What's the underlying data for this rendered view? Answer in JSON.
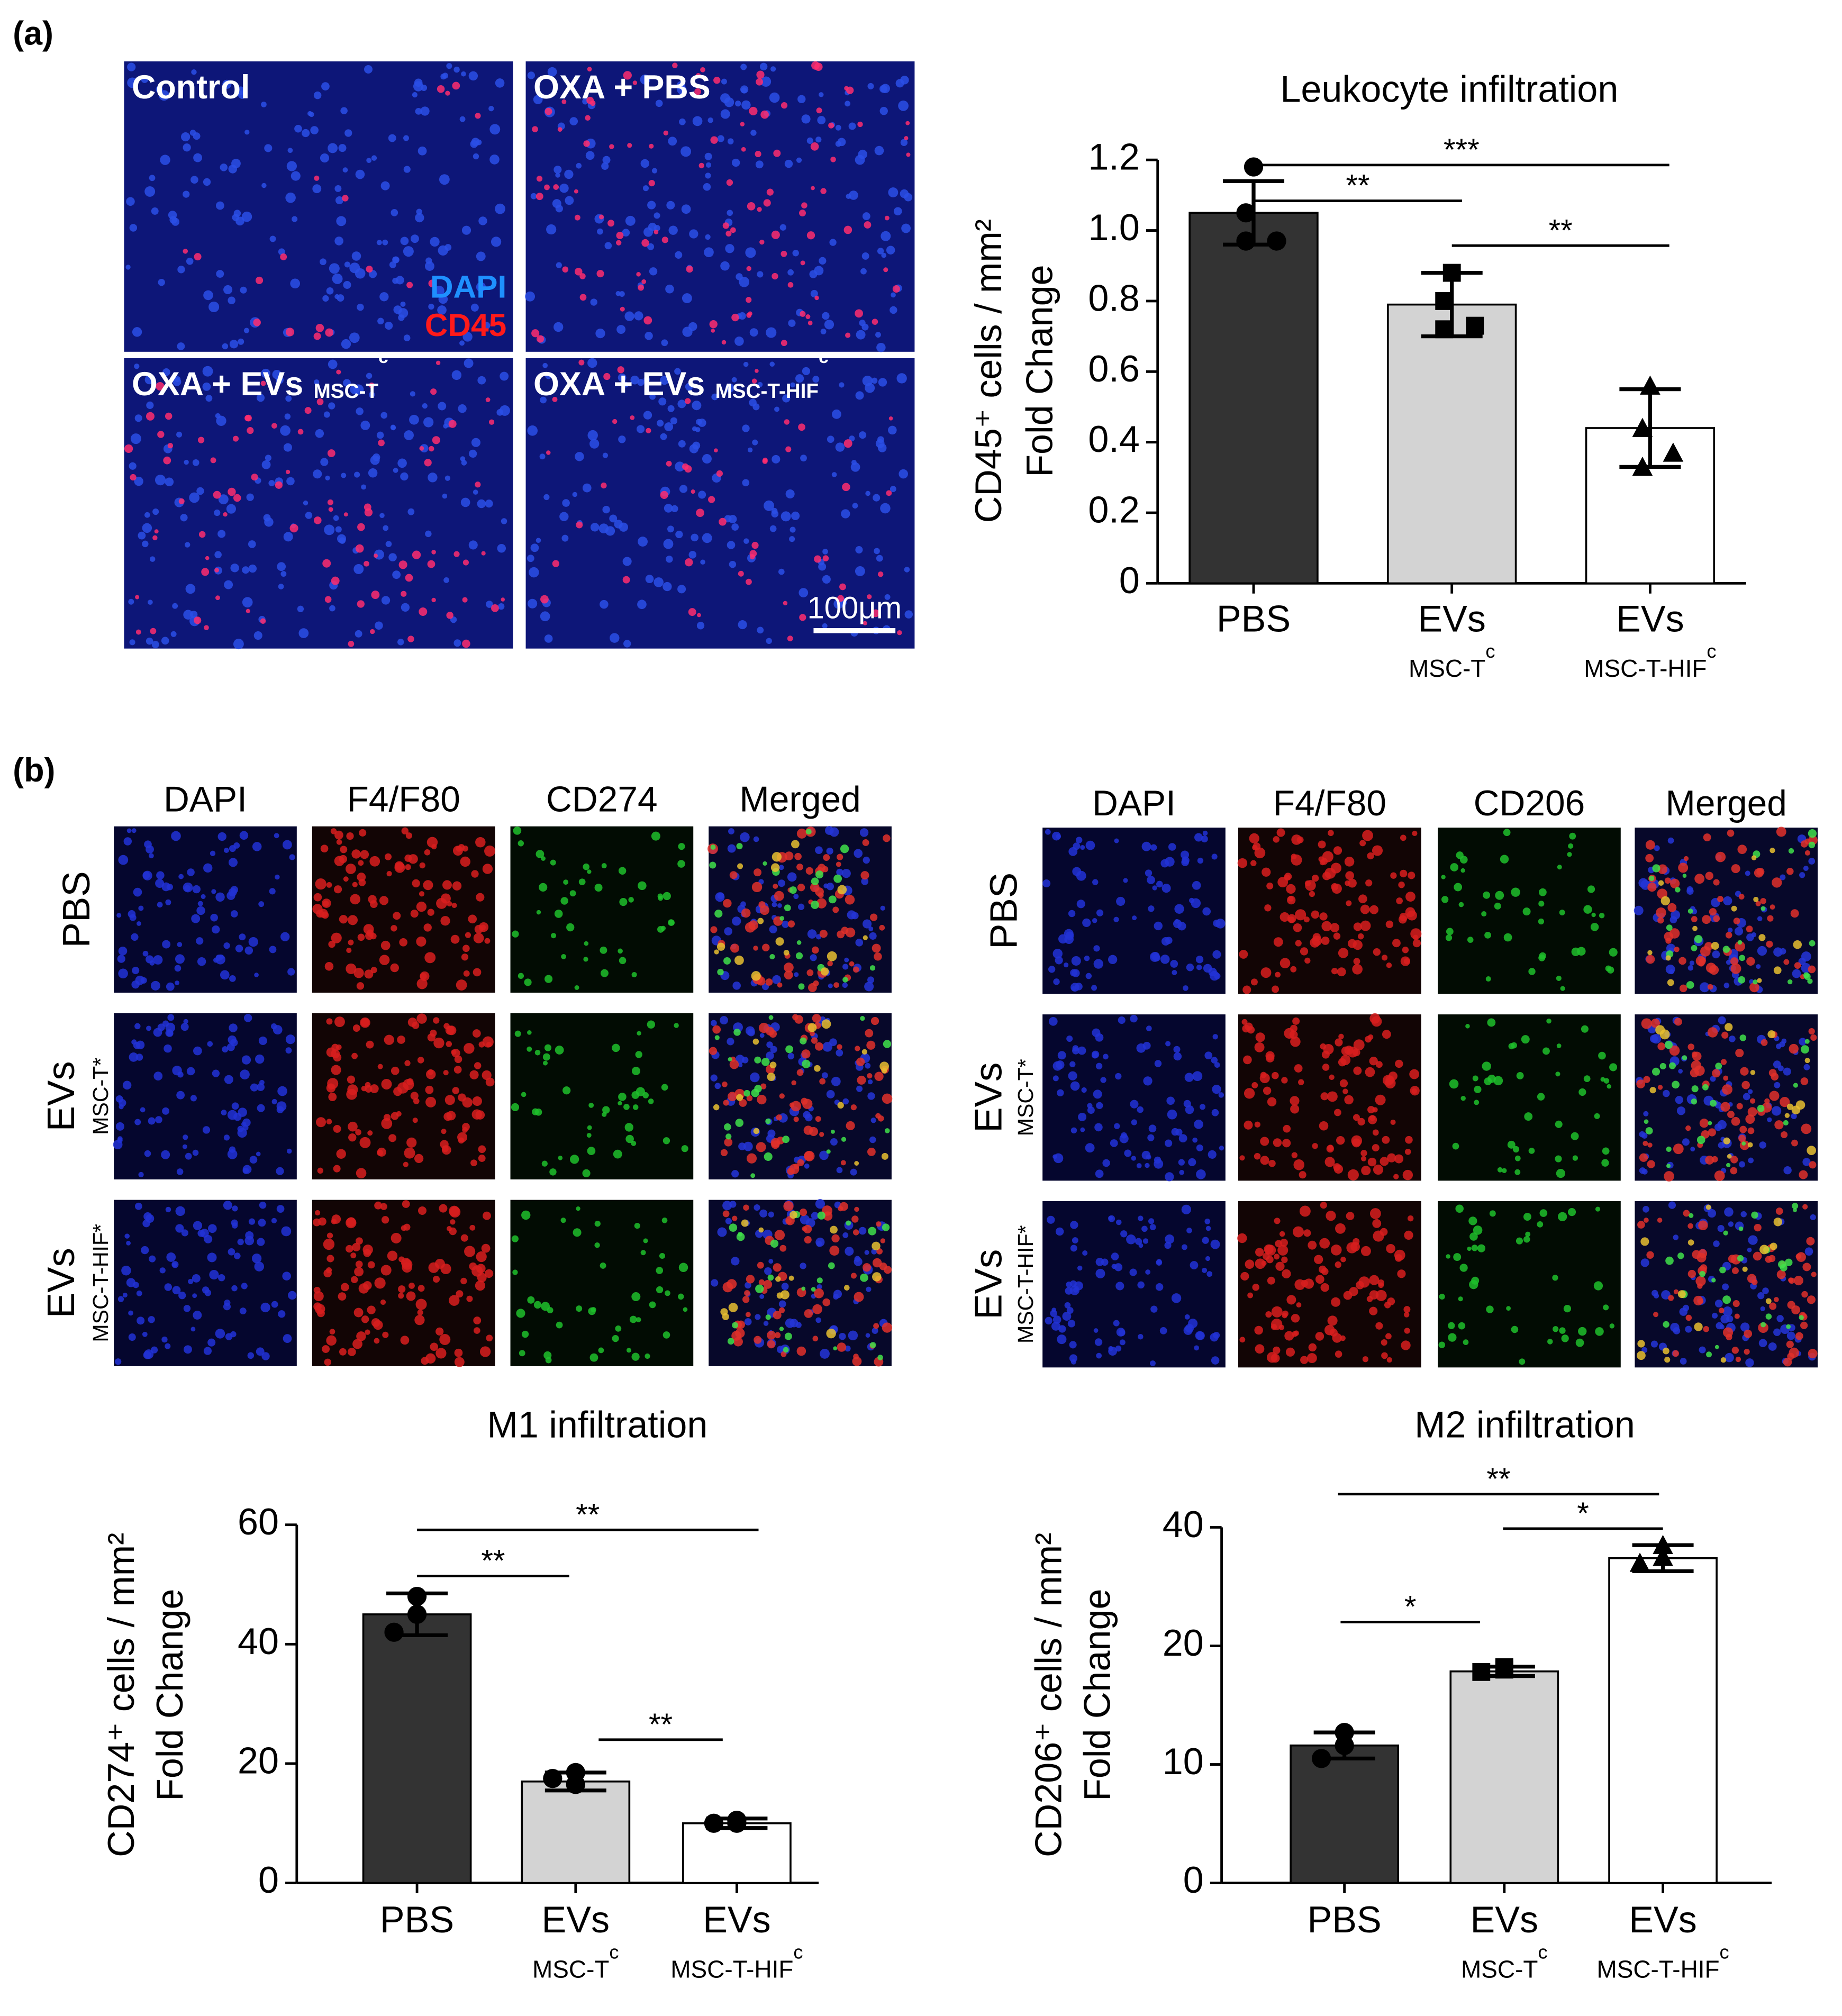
{
  "figure": {
    "panel_a": "(a)",
    "panel_b": "(b)",
    "micrographs_a": {
      "labels": [
        {
          "text": "Control"
        },
        {
          "text": "OXA + PBS"
        },
        {
          "text": "OXA + EVs",
          "sub": "MSC-T",
          "sup": "c"
        },
        {
          "text": "OXA +  EVs",
          "sub": "MSC-T-HIF",
          "sup": "c"
        }
      ],
      "stains": [
        "DAPI",
        "CD45"
      ],
      "scale_bar": "100μm"
    },
    "micrographs_b": [
      {
        "columns": [
          "DAPI",
          "F4/F80",
          "CD274",
          "Merged"
        ],
        "rows": [
          {
            "text": "PBS"
          },
          {
            "text": "EVs",
            "sub": "MSC-T*"
          },
          {
            "text": "EVs",
            "sub": "MSC-T-HIF*"
          }
        ]
      },
      {
        "columns": [
          "DAPI",
          "F4/F80",
          "CD206",
          "Merged"
        ],
        "rows": [
          {
            "text": "PBS"
          },
          {
            "text": "EVs",
            "sub": "MSC-T*"
          },
          {
            "text": "EVs",
            "sub": "MSC-T-HIF*"
          }
        ]
      }
    ]
  },
  "chart_data": [
    {
      "type": "bar",
      "title": "Leukocyte infiltration",
      "ylabel": [
        "CD45⁺ cells / mm²",
        "Fold Change"
      ],
      "categories": [
        "PBS",
        "EVs",
        "EVs"
      ],
      "category_sublabels": [
        null,
        "MSC-T",
        "MSC-T-HIF"
      ],
      "category_superscripts": [
        null,
        "c",
        "c"
      ],
      "values": [
        1.05,
        0.79,
        0.44
      ],
      "errors": [
        0.09,
        0.09,
        0.11
      ],
      "points": [
        [
          1.18,
          1.05,
          0.97,
          0.97
        ],
        [
          0.88,
          0.8,
          0.72,
          0.73
        ],
        [
          0.56,
          0.44,
          0.33,
          0.37
        ]
      ],
      "markers": [
        "circle",
        "square",
        "triangle"
      ],
      "colors": [
        "#333333",
        "#d3d3d3",
        "#ffffff"
      ],
      "ylim": [
        0,
        1.2
      ],
      "yticks": [
        0,
        0.2,
        0.4,
        0.6,
        0.8,
        {
          "value": 1,
          "label": "1.0"
        },
        1.2
      ],
      "significance": [
        {
          "from": 0,
          "to": 1,
          "label": "**"
        },
        {
          "from": 0,
          "to": 2,
          "label": "***"
        },
        {
          "from": 1,
          "to": 2,
          "label": "**"
        }
      ]
    },
    {
      "type": "bar",
      "title": "M1 infiltration",
      "ylabel": [
        "CD274⁺ cells / mm²",
        "Fold Change"
      ],
      "categories": [
        "PBS",
        "EVs",
        "EVs"
      ],
      "category_sublabels": [
        null,
        "MSC-T",
        "MSC-T-HIF"
      ],
      "category_superscripts": [
        null,
        "c",
        "c"
      ],
      "values": [
        45,
        17,
        10
      ],
      "errors": [
        3.5,
        1.5,
        0.8
      ],
      "points": [
        [
          48,
          45,
          42
        ],
        [
          16.5,
          18.5,
          17.5
        ],
        [
          10,
          10.5,
          10
        ]
      ],
      "markers": [
        "circle",
        "circle",
        "circle"
      ],
      "colors": [
        "#333333",
        "#d3d3d3",
        "#ffffff"
      ],
      "ylim": [
        0,
        60
      ],
      "yticks": [
        0,
        20,
        40,
        60
      ],
      "significance": [
        {
          "from": 0,
          "to": 1,
          "label": "**"
        },
        {
          "from": 0,
          "to": 2,
          "label": "**"
        },
        {
          "from": 1,
          "to": 2,
          "label": "**"
        }
      ]
    },
    {
      "type": "bar",
      "title": "M2 infiltration",
      "ylabel": [
        "CD206⁺ cells / mm²",
        "Fold Change"
      ],
      "categories": [
        "PBS",
        "EVs",
        "EVs"
      ],
      "category_sublabels": [
        null,
        "MSC-T",
        "MSC-T-HIF"
      ],
      "category_superscripts": [
        null,
        "c",
        "c"
      ],
      "values": [
        11.6,
        17.85,
        34.8
      ],
      "errors": [
        1.1,
        0.4,
        2.2
      ],
      "points": [
        [
          12.7,
          11.6,
          10.5
        ],
        [
          18,
          18.2,
          17.8
        ],
        [
          37,
          35,
          34
        ]
      ],
      "markers": [
        "circle",
        "square",
        "triangle"
      ],
      "colors": [
        "#333333",
        "#d3d3d3",
        "#ffffff"
      ],
      "ylim": [
        0,
        40
      ],
      "yticks": [
        0,
        10,
        20,
        40
      ],
      "yscale": "segmented",
      "significance": [
        {
          "from": 0,
          "to": 1,
          "label": "*"
        },
        {
          "from": 0,
          "to": 2,
          "label": "**"
        },
        {
          "from": 1,
          "to": 2,
          "label": "*"
        }
      ]
    }
  ]
}
